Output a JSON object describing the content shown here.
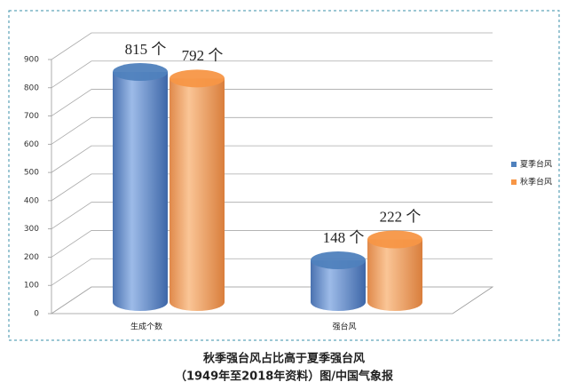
{
  "chart_data": {
    "type": "bar3d",
    "categories": [
      "生成个数",
      "强台风"
    ],
    "series": [
      {
        "name": "夏季台风",
        "color": "#4f81bd",
        "values": [
          815,
          148
        ],
        "value_labels": [
          "815 个",
          "148 个"
        ]
      },
      {
        "name": "秋季台风",
        "color": "#f79646",
        "values": [
          792,
          222
        ],
        "value_labels": [
          "792 个",
          "222 个"
        ]
      }
    ],
    "ylim": [
      0,
      900
    ],
    "yticks": [
      0,
      100,
      200,
      300,
      400,
      500,
      600,
      700,
      800,
      900
    ],
    "grid": true,
    "legend": "right",
    "title": "秋季强台风占比高于夏季强台风",
    "subtitle": "（1949年至2018年资料）图/中国气象报"
  }
}
